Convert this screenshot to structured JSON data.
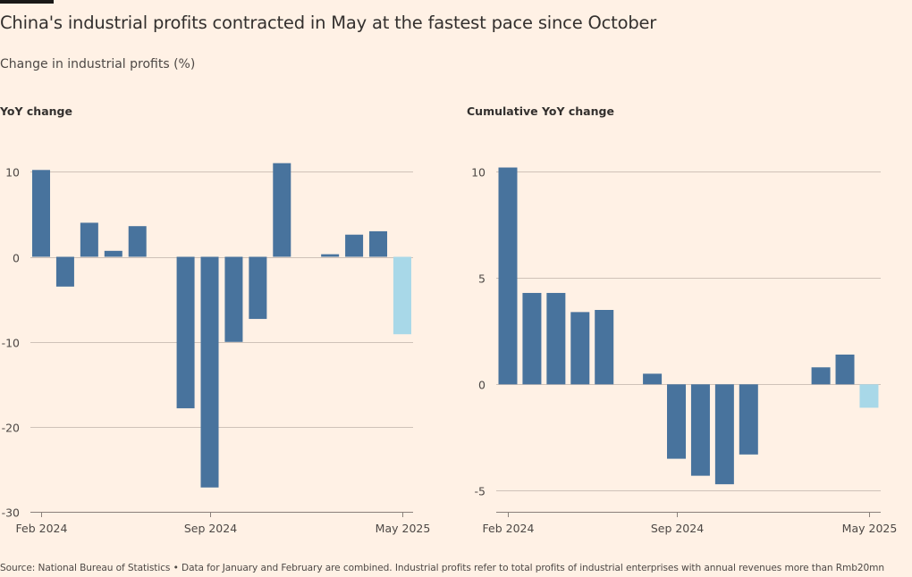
{
  "header": {
    "title": "China's industrial profits contracted in May at the fastest pace since October",
    "subtitle": "Change in industrial profits (%)"
  },
  "footer": {
    "source": "Source: National Bureau of Statistics • Data for January and February are combined. Industrial profits refer to total profits of industrial enterprises with annual revenues more than Rmb20mn"
  },
  "colors": {
    "background": "#fff1e5",
    "bar": "#48739d",
    "bar_latest": "#a8d8e8",
    "gridline": "#cfc2b8",
    "axis": "#8a807a"
  },
  "chart_data": [
    {
      "type": "bar",
      "title": "YoY change",
      "xlabel": "",
      "ylabel": "",
      "ylim": [
        -30,
        11
      ],
      "yticks": [
        10,
        0,
        -10,
        -20,
        -30
      ],
      "grid": true,
      "x_tick_labels": [
        "Feb 2024",
        "Sep 2024",
        "May 2025"
      ],
      "categories": [
        "Feb 2024",
        "Mar 2024",
        "Apr 2024",
        "May 2024",
        "Jun 2024",
        "Jul 2024",
        "Aug 2024",
        "Sep 2024",
        "Oct 2024",
        "Nov 2024",
        "Dec 2024",
        "Jan 2025",
        "Feb 2025",
        "Mar 2025",
        "Apr 2025",
        "May 2025"
      ],
      "values": [
        10.2,
        -3.5,
        4.0,
        0.7,
        3.6,
        null,
        -17.8,
        -27.1,
        -10.0,
        -7.3,
        11.0,
        null,
        0.3,
        2.6,
        3.0,
        -9.1
      ],
      "highlight_last": true
    },
    {
      "type": "bar",
      "title": "Cumulative YoY change",
      "xlabel": "",
      "ylabel": "",
      "ylim": [
        -6,
        10.5
      ],
      "yticks": [
        10,
        5,
        0,
        -5
      ],
      "grid": true,
      "x_tick_labels": [
        "Feb 2024",
        "Sep 2024",
        "May 2025"
      ],
      "categories": [
        "Feb 2024",
        "Mar 2024",
        "Apr 2024",
        "May 2024",
        "Jun 2024",
        "Jul 2024",
        "Aug 2024",
        "Sep 2024",
        "Oct 2024",
        "Nov 2024",
        "Dec 2024",
        "Jan 2025",
        "Feb 2025",
        "Mar 2025",
        "Apr 2025",
        "May 2025"
      ],
      "values": [
        10.2,
        4.3,
        4.3,
        3.4,
        3.5,
        null,
        0.5,
        -3.5,
        -4.3,
        -4.7,
        -3.3,
        null,
        null,
        0.8,
        1.4,
        -1.1
      ],
      "highlight_last": true
    }
  ]
}
